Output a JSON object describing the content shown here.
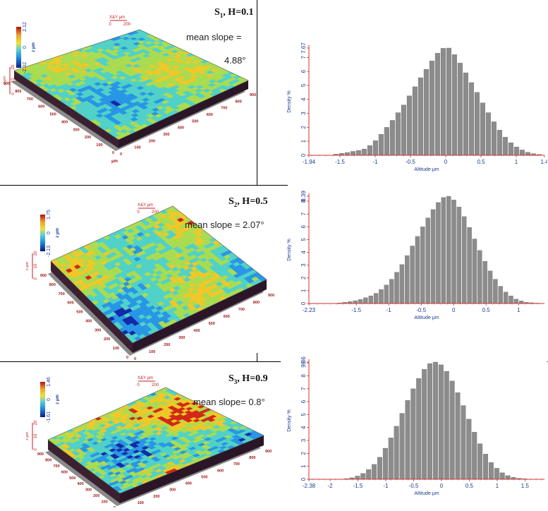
{
  "rows": [
    {
      "sample": {
        "letter": "S",
        "index": "1",
        "h_text": ", H=0.1"
      },
      "slope_lines": [
        "mean slope =",
        "4.88°"
      ],
      "surface": {
        "z_scale_ticks": [
          "2.12",
          "0",
          "-2.32"
        ],
        "z_unit": "z μm",
        "sub_scale_ticks": [
          "20",
          "10",
          "0"
        ],
        "sub_unit": "z μm",
        "xy_legend": "X&Y μm",
        "xy_ticks": [
          "0",
          "200"
        ],
        "axis_ticks_left": [
          "900",
          "800",
          "700",
          "600",
          "500",
          "400",
          "300",
          "200",
          "100",
          "0"
        ],
        "axis_ticks_right": [
          "0",
          "100",
          "200",
          "300",
          "400",
          "500",
          "600",
          "700",
          "800",
          "900"
        ],
        "axis_unit": "μm"
      },
      "hist": {
        "ylabel": "Density %",
        "xlabel": "Altitude μm",
        "x_ticks": [
          "-1.94",
          "-1.5",
          "-1",
          "-0.5",
          "0",
          "0.5",
          "1",
          "1.4"
        ],
        "y_ticks": [
          "0",
          "1",
          "2",
          "3",
          "4",
          "5",
          "6",
          "7",
          "7.67"
        ]
      }
    },
    {
      "sample": {
        "letter": "S",
        "index": "2",
        "h_text": ", H=0.5"
      },
      "slope_lines": [
        "mean slope = 2.07°"
      ],
      "surface": {
        "z_scale_ticks": [
          "1.75",
          "0",
          "-2.13"
        ],
        "z_unit": "z μm",
        "sub_scale_ticks": [
          "20",
          "10",
          "0"
        ],
        "sub_unit": "z μm",
        "xy_legend": "X&Y μm",
        "xy_ticks": [
          "0",
          "200"
        ],
        "axis_ticks_left": [
          "900",
          "800",
          "700",
          "600",
          "500",
          "400",
          "300",
          "200",
          "100",
          "0"
        ],
        "axis_ticks_right": [
          "0",
          "100",
          "200",
          "300",
          "400",
          "500",
          "600",
          "700",
          "800",
          "900"
        ],
        "axis_unit": "μm"
      },
      "hist": {
        "ylabel": "Density %",
        "xlabel": "Altitude μm",
        "x_ticks": [
          "-2.23",
          "-1.5",
          "-1",
          "-0.5",
          "0",
          "0.5",
          "1"
        ],
        "y_ticks": [
          "0",
          "1",
          "2",
          "3",
          "4",
          "5",
          "6",
          "7",
          "8",
          "8.39"
        ]
      }
    },
    {
      "sample": {
        "letter": "S",
        "index": "3",
        "h_text": ", H=0.9"
      },
      "slope_lines": [
        "mean slope= 0.8°"
      ],
      "surface": {
        "z_scale_ticks": [
          "1.46",
          "0",
          "-1.61"
        ],
        "z_unit": "z μm",
        "sub_scale_ticks": [
          "20",
          "10",
          "0"
        ],
        "sub_unit": "z μm",
        "xy_legend": "X&Y μm",
        "xy_ticks": [
          "0",
          "200"
        ],
        "axis_ticks_left": [
          "900",
          "800",
          "700",
          "600",
          "500",
          "400",
          "300",
          "200",
          "100",
          "0"
        ],
        "axis_ticks_right": [
          "0",
          "100",
          "200",
          "300",
          "400",
          "500",
          "600",
          "700",
          "800",
          "900"
        ],
        "axis_unit": "μm"
      },
      "hist": {
        "ylabel": "Density %",
        "xlabel": "Altitude μm",
        "x_ticks": [
          "-2.38",
          "-2",
          "-1.5",
          "-1",
          "-0.5",
          "0",
          "0.5",
          "1",
          "1.5"
        ],
        "y_ticks": [
          "0",
          "1",
          "2",
          "3",
          "4",
          "5",
          "6",
          "7",
          "8",
          "9",
          "9.06"
        ]
      }
    }
  ],
  "chart_data": [
    {
      "type": "bar",
      "xlabel": "Altitude μm",
      "ylabel": "Density %",
      "xlim": [
        -1.94,
        1.4
      ],
      "ylim": [
        0,
        7.67
      ],
      "bin_centers": [
        -1.55,
        -1.47,
        -1.39,
        -1.31,
        -1.23,
        -1.15,
        -1.07,
        -0.99,
        -0.91,
        -0.83,
        -0.75,
        -0.67,
        -0.59,
        -0.51,
        -0.43,
        -0.35,
        -0.27,
        -0.19,
        -0.11,
        -0.03,
        0.05,
        0.13,
        0.21,
        0.29,
        0.37,
        0.45,
        0.53,
        0.61,
        0.69,
        0.77,
        0.85,
        0.93,
        1.01,
        1.09,
        1.17,
        1.25,
        1.33
      ],
      "values": [
        0.08,
        0.14,
        0.2,
        0.28,
        0.35,
        0.45,
        0.7,
        1.05,
        1.5,
        2.0,
        2.5,
        3.05,
        3.6,
        4.25,
        4.9,
        5.55,
        6.15,
        6.75,
        7.3,
        7.65,
        7.67,
        7.2,
        6.6,
        5.9,
        5.2,
        4.5,
        3.75,
        3.05,
        2.4,
        1.8,
        1.3,
        0.9,
        0.6,
        0.38,
        0.22,
        0.12,
        0.06
      ]
    },
    {
      "type": "bar",
      "xlabel": "Altitude μm",
      "ylabel": "Density %",
      "xlim": [
        -2.23,
        1.4
      ],
      "ylim": [
        0,
        8.39
      ],
      "bin_centers": [
        -1.75,
        -1.67,
        -1.59,
        -1.51,
        -1.43,
        -1.35,
        -1.27,
        -1.19,
        -1.11,
        -1.03,
        -0.95,
        -0.87,
        -0.79,
        -0.71,
        -0.63,
        -0.55,
        -0.47,
        -0.39,
        -0.31,
        -0.23,
        -0.15,
        -0.07,
        0.01,
        0.09,
        0.17,
        0.25,
        0.33,
        0.41,
        0.49,
        0.57,
        0.65,
        0.73,
        0.81,
        0.89,
        0.97,
        1.05,
        1.13,
        1.21,
        1.29
      ],
      "values": [
        0.05,
        0.1,
        0.15,
        0.22,
        0.32,
        0.45,
        0.6,
        0.8,
        1.1,
        1.45,
        1.9,
        2.45,
        3.05,
        3.75,
        4.5,
        5.25,
        6.0,
        6.7,
        7.35,
        7.9,
        8.3,
        8.39,
        8.1,
        7.55,
        6.8,
        5.95,
        5.05,
        4.15,
        3.3,
        2.55,
        1.9,
        1.35,
        0.9,
        0.6,
        0.35,
        0.2,
        0.1,
        0.06,
        0.03
      ]
    },
    {
      "type": "bar",
      "xlabel": "Altitude μm",
      "ylabel": "Density %",
      "xlim": [
        -2.38,
        1.85
      ],
      "ylim": [
        0,
        9.06
      ],
      "bin_centers": [
        -1.7,
        -1.6,
        -1.5,
        -1.4,
        -1.3,
        -1.2,
        -1.1,
        -1.0,
        -0.9,
        -0.8,
        -0.7,
        -0.6,
        -0.5,
        -0.4,
        -0.3,
        -0.2,
        -0.1,
        0.0,
        0.1,
        0.2,
        0.3,
        0.4,
        0.5,
        0.6,
        0.7,
        0.8,
        0.9,
        1.0,
        1.1,
        1.2,
        1.3,
        1.4,
        1.5
      ],
      "values": [
        0.05,
        0.12,
        0.25,
        0.45,
        0.75,
        1.15,
        1.7,
        2.4,
        3.2,
        4.1,
        5.1,
        6.1,
        7.0,
        7.8,
        8.5,
        8.95,
        9.06,
        8.85,
        8.35,
        7.6,
        6.7,
        5.7,
        4.65,
        3.65,
        2.75,
        1.95,
        1.3,
        0.85,
        0.5,
        0.28,
        0.15,
        0.08,
        0.04
      ]
    }
  ]
}
